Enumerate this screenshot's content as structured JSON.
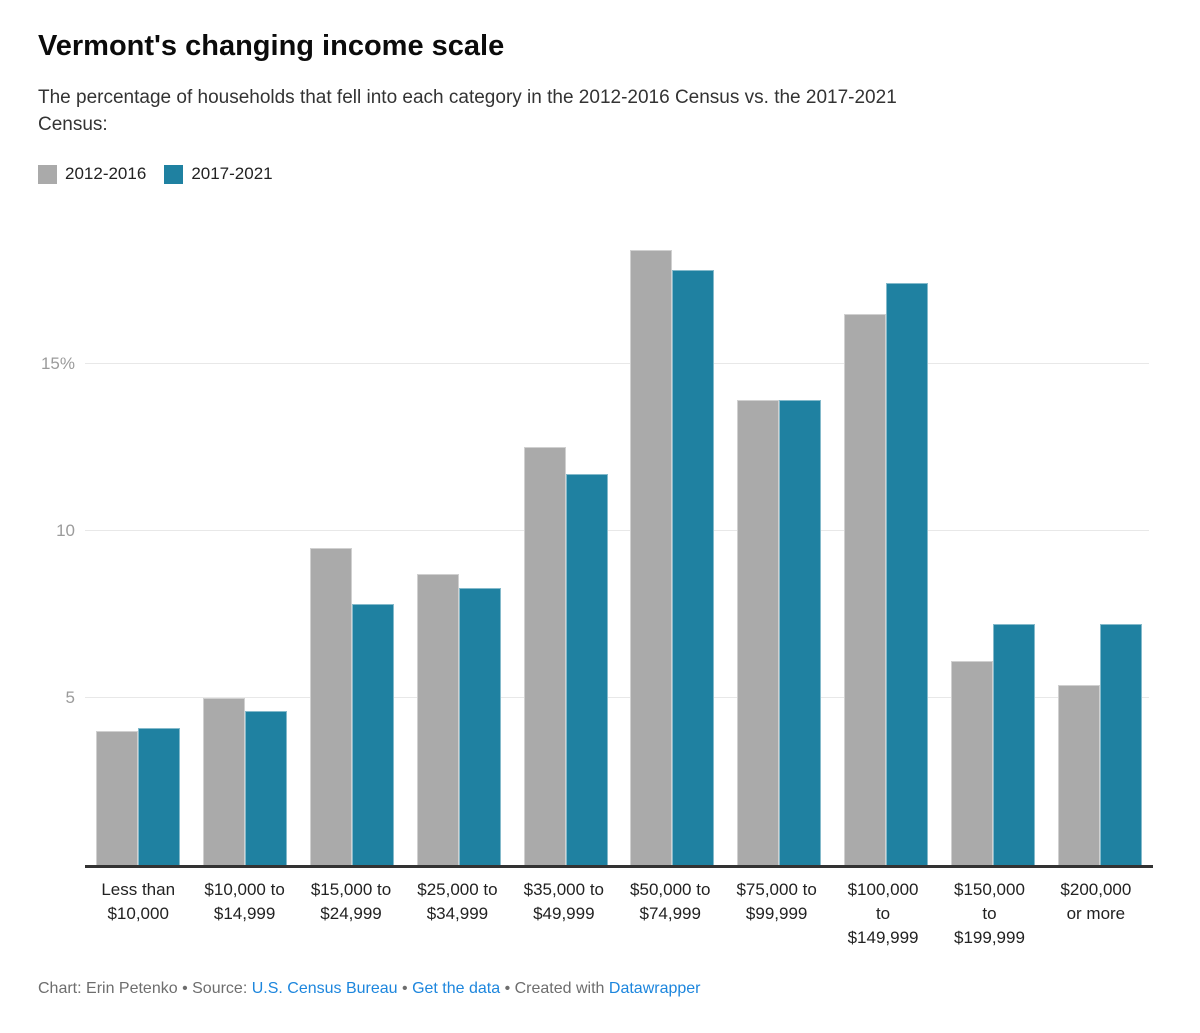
{
  "header": {
    "title": "Vermont's changing income scale",
    "subtitle": "The percentage of households that fell into each category in the 2012-2016 Census vs. the 2017-2021\nCensus:"
  },
  "legend": [
    {
      "label": "2012-2016",
      "color": "#aaaaaa"
    },
    {
      "label": "2017-2021",
      "color": "#1f81a1"
    }
  ],
  "chart_data": {
    "type": "bar",
    "title": "Vermont's changing income scale",
    "xlabel": "",
    "ylabel": "",
    "unit": "percent of households",
    "categories": [
      "Less than\n$10,000",
      "$10,000 to\n$14,999",
      "$15,000 to\n$24,999",
      "$25,000 to\n$34,999",
      "$35,000 to\n$49,999",
      "$50,000 to\n$74,999",
      "$75,000 to\n$99,999",
      "$100,000\nto\n$149,999",
      "$150,000\nto\n$199,999",
      "$200,000\nor more"
    ],
    "series": [
      {
        "name": "2012-2016",
        "color": "#aaaaaa",
        "values": [
          4.0,
          5.0,
          9.5,
          8.7,
          12.5,
          18.4,
          13.9,
          16.5,
          6.1,
          5.4
        ]
      },
      {
        "name": "2017-2021",
        "color": "#1f81a1",
        "values": [
          4.1,
          4.6,
          7.8,
          8.3,
          11.7,
          17.8,
          13.9,
          17.4,
          7.2,
          7.2
        ]
      }
    ],
    "y_ticks": [
      5,
      10,
      15
    ],
    "y_tick_labels": [
      "5",
      "10",
      "15%"
    ],
    "ylim": [
      0,
      18.85
    ],
    "grid": true,
    "legend_position": "top-left",
    "baseline_color": "#333333",
    "gridline_color": "#e8e8e8"
  },
  "footer": {
    "byline_and_source": "Chart: Erin Petenko • Source: ",
    "source_link": "U.S. Census Bureau",
    "sep1": " • ",
    "data_link": "Get the data",
    "sep2": " • Created with ",
    "tool_link": "Datawrapper"
  }
}
